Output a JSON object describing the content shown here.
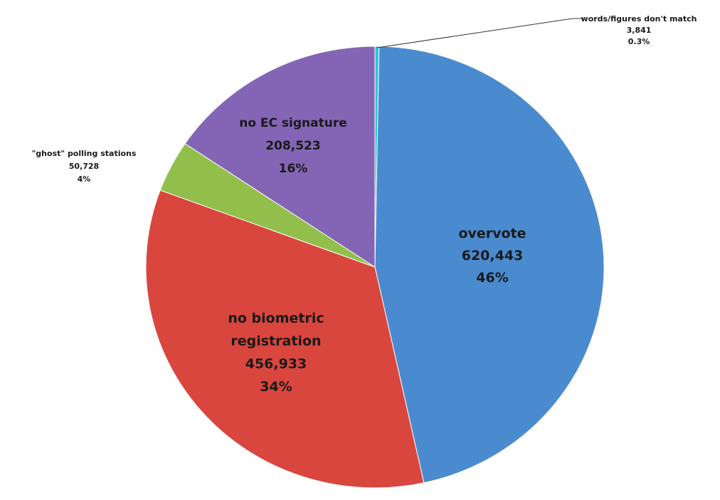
{
  "chart_data": {
    "type": "pie",
    "slices": [
      {
        "name": "words/figures don't match",
        "value": 3841,
        "value_label": "3,841",
        "percent_label": "0.3%",
        "color": "#2ec4d6",
        "label_lines": [
          "words/figures don't match"
        ]
      },
      {
        "name": "overvote",
        "value": 620443,
        "value_label": "620,443",
        "percent_label": "46%",
        "color": "#4a8bd0",
        "label_lines": [
          "overvote"
        ]
      },
      {
        "name": "no biometric registration",
        "value": 456933,
        "value_label": "456,933",
        "percent_label": "34%",
        "color": "#d9463e",
        "label_lines": [
          "no biometric",
          "registration"
        ]
      },
      {
        "name": "\"ghost\" polling stations",
        "value": 50728,
        "value_label": "50,728",
        "percent_label": "4%",
        "color": "#92bf4c",
        "label_lines": [
          "\"ghost\" polling stations"
        ]
      },
      {
        "name": "no EC signature",
        "value": 208523,
        "value_label": "208,523",
        "percent_label": "16%",
        "color": "#8465b5",
        "label_lines": [
          "no EC signature"
        ]
      }
    ],
    "start_angle": "top",
    "direction": "clockwise",
    "legend": "none"
  }
}
